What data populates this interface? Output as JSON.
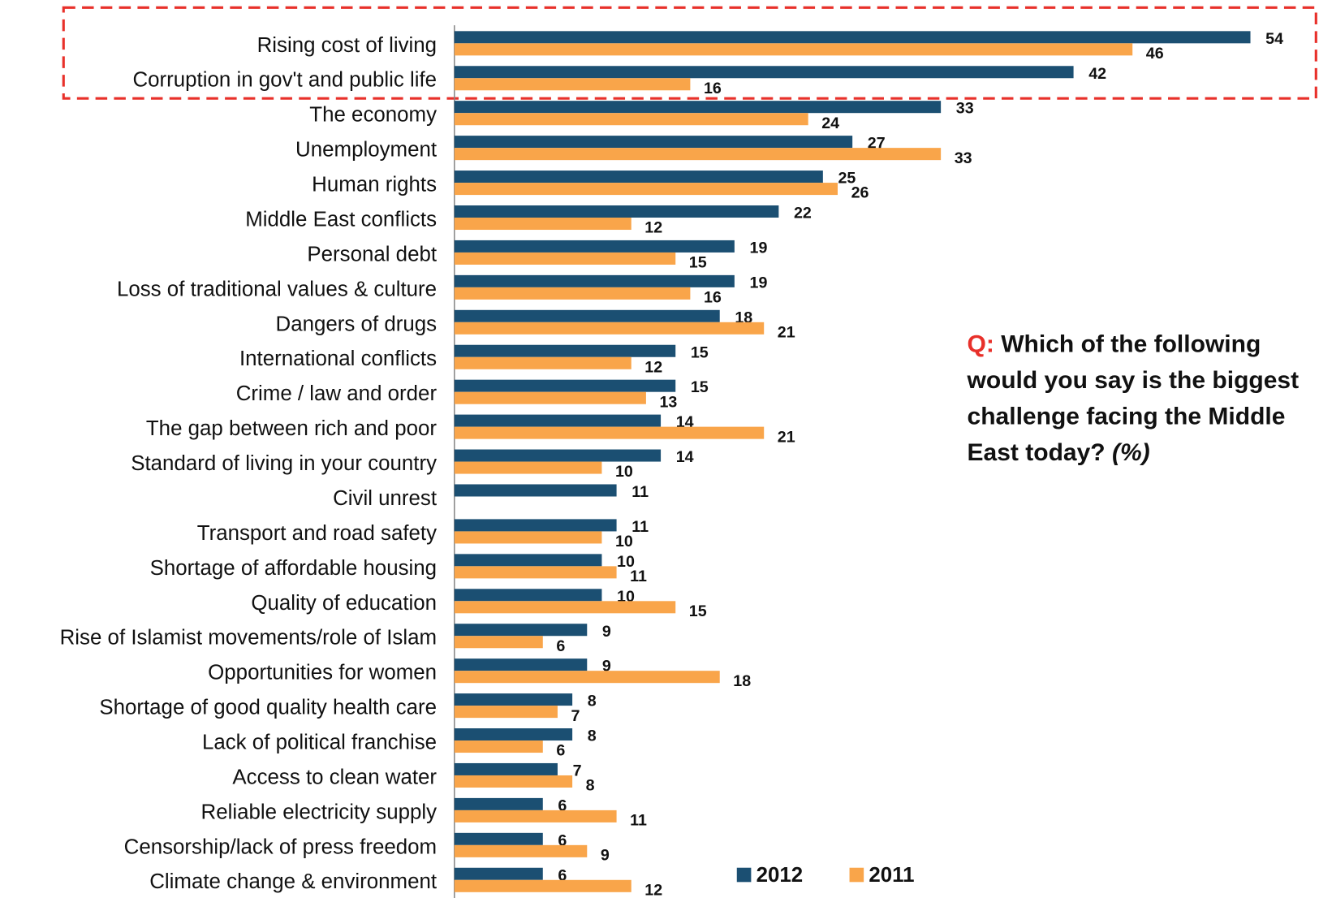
{
  "chart_data": {
    "type": "hbar",
    "categories": [
      "Rising cost of living",
      "Corruption in gov't and public life",
      "The economy",
      "Unemployment",
      "Human rights",
      "Middle East conflicts",
      "Personal debt",
      "Loss of traditional values & culture",
      "Dangers of drugs",
      "International conflicts",
      "Crime / law and order",
      "The gap between rich and poor",
      "Standard of living in your country",
      "Civil unrest",
      "Transport and road safety",
      "Shortage of affordable housing",
      "Quality of education",
      "Rise of Islamist movements/role of Islam",
      "Opportunities for women",
      "Shortage of good quality health care",
      "Lack of political franchise",
      "Access to clean water",
      "Reliable electricity supply",
      "Censorship/lack of press freedom",
      "Climate change & environment"
    ],
    "series": [
      {
        "name": "2012",
        "color": "#1b4f72",
        "values": [
          54,
          42,
          33,
          27,
          25,
          22,
          19,
          19,
          18,
          15,
          15,
          14,
          14,
          11,
          11,
          10,
          10,
          9,
          9,
          8,
          8,
          7,
          6,
          6,
          6
        ]
      },
      {
        "name": "2011",
        "color": "#f9a54a",
        "values": [
          46,
          16,
          24,
          33,
          26,
          12,
          15,
          16,
          21,
          12,
          13,
          21,
          10,
          null,
          10,
          11,
          15,
          6,
          18,
          7,
          6,
          8,
          11,
          9,
          12
        ]
      }
    ],
    "annotation": {
      "prefix": "Q:",
      "lines": [
        "Which of the following",
        "would you say is the biggest",
        "challenge facing the Middle",
        "East today?"
      ],
      "suffix": "(%)"
    },
    "legend": "bottom"
  }
}
